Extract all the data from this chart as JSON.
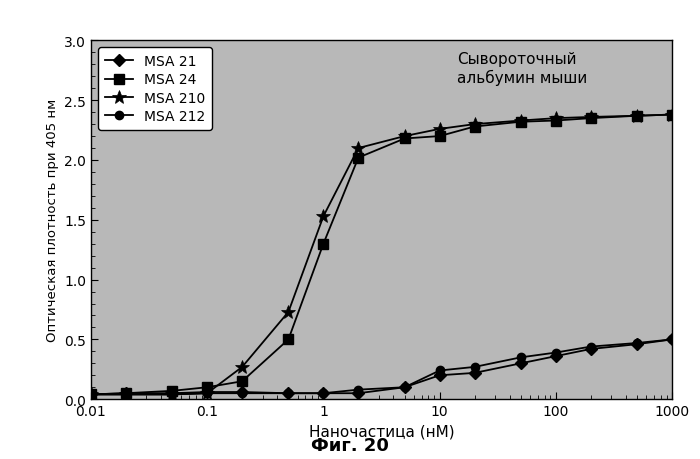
{
  "title_annotation": "Сывороточный\nальбумин мыши",
  "xlabel": "Наночастица (нМ)",
  "ylabel": "Оптическая плотность при 405 нм",
  "caption": "Фиг. 20",
  "xlim": [
    0.01,
    1000
  ],
  "ylim": [
    0,
    3.0
  ],
  "yticks": [
    0,
    0.5,
    1.0,
    1.5,
    2.0,
    2.5,
    3.0
  ],
  "xtick_labels": [
    "0.01",
    "0.1",
    "1",
    "10",
    "100",
    "1000"
  ],
  "xtick_vals": [
    0.01,
    0.1,
    1,
    10,
    100,
    1000
  ],
  "background_color": "#b8b8b8",
  "outer_bg": "#d0d0d0",
  "series": [
    {
      "label": "MSA 21",
      "marker": "D",
      "color": "#000000",
      "markersize": 6,
      "x": [
        0.01,
        0.02,
        0.05,
        0.1,
        0.2,
        0.5,
        1.0,
        2.0,
        5.0,
        10.0,
        20.0,
        50.0,
        100.0,
        200.0,
        500.0,
        1000.0
      ],
      "y": [
        0.04,
        0.05,
        0.05,
        0.06,
        0.06,
        0.05,
        0.05,
        0.05,
        0.1,
        0.2,
        0.22,
        0.3,
        0.36,
        0.42,
        0.46,
        0.5
      ]
    },
    {
      "label": "MSA 24",
      "marker": "s",
      "color": "#000000",
      "markersize": 7,
      "x": [
        0.01,
        0.02,
        0.05,
        0.1,
        0.2,
        0.5,
        1.0,
        2.0,
        5.0,
        10.0,
        20.0,
        50.0,
        100.0,
        200.0,
        500.0,
        1000.0
      ],
      "y": [
        0.04,
        0.05,
        0.07,
        0.1,
        0.15,
        0.5,
        1.3,
        2.02,
        2.18,
        2.2,
        2.28,
        2.32,
        2.33,
        2.35,
        2.37,
        2.38
      ]
    },
    {
      "label": "MSA 210",
      "marker": "*",
      "color": "#000000",
      "markersize": 10,
      "x": [
        0.01,
        0.02,
        0.05,
        0.1,
        0.2,
        0.5,
        1.0,
        2.0,
        5.0,
        10.0,
        20.0,
        50.0,
        100.0,
        200.0,
        500.0,
        1000.0
      ],
      "y": [
        0.04,
        0.04,
        0.04,
        0.05,
        0.27,
        0.73,
        1.53,
        2.1,
        2.2,
        2.26,
        2.3,
        2.33,
        2.35,
        2.36,
        2.37,
        2.38
      ]
    },
    {
      "label": "MSA 212",
      "marker": "o",
      "color": "#000000",
      "markersize": 6,
      "x": [
        0.01,
        0.02,
        0.05,
        0.1,
        0.2,
        0.5,
        1.0,
        2.0,
        5.0,
        10.0,
        20.0,
        50.0,
        100.0,
        200.0,
        500.0,
        1000.0
      ],
      "y": [
        0.04,
        0.04,
        0.04,
        0.05,
        0.05,
        0.05,
        0.05,
        0.08,
        0.1,
        0.24,
        0.27,
        0.35,
        0.39,
        0.44,
        0.47,
        0.5
      ]
    }
  ]
}
